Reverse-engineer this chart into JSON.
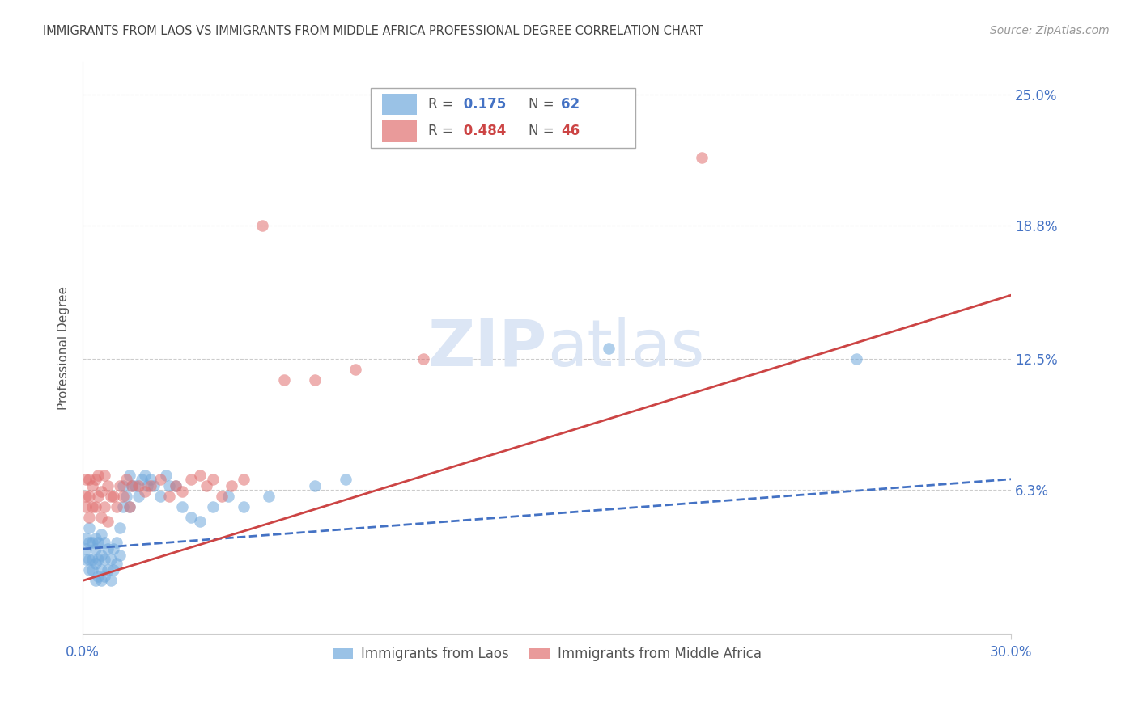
{
  "title": "IMMIGRANTS FROM LAOS VS IMMIGRANTS FROM MIDDLE AFRICA PROFESSIONAL DEGREE CORRELATION CHART",
  "source": "Source: ZipAtlas.com",
  "ylabel": "Professional Degree",
  "ytick_labels": [
    "25.0%",
    "18.8%",
    "12.5%",
    "6.3%"
  ],
  "ytick_values": [
    0.25,
    0.188,
    0.125,
    0.063
  ],
  "xlim": [
    0.0,
    0.3
  ],
  "ylim": [
    -0.005,
    0.265
  ],
  "legend_laos_R": 0.175,
  "legend_laos_N": 62,
  "legend_africa_R": 0.484,
  "legend_africa_N": 46,
  "laos_color": "#6fa8dc",
  "africa_color": "#e07070",
  "laos_line_color": "#4472c4",
  "africa_line_color": "#cc4444",
  "title_color": "#444444",
  "axis_label_color": "#4472c4",
  "watermark_color": "#dce6f5",
  "laos_x": [
    0.001,
    0.001,
    0.001,
    0.002,
    0.002,
    0.002,
    0.002,
    0.003,
    0.003,
    0.003,
    0.004,
    0.004,
    0.004,
    0.004,
    0.005,
    0.005,
    0.005,
    0.006,
    0.006,
    0.006,
    0.006,
    0.007,
    0.007,
    0.007,
    0.008,
    0.008,
    0.009,
    0.009,
    0.01,
    0.01,
    0.011,
    0.011,
    0.012,
    0.012,
    0.013,
    0.013,
    0.014,
    0.015,
    0.015,
    0.016,
    0.017,
    0.018,
    0.019,
    0.02,
    0.021,
    0.022,
    0.023,
    0.025,
    0.027,
    0.028,
    0.03,
    0.032,
    0.035,
    0.038,
    0.042,
    0.047,
    0.052,
    0.06,
    0.075,
    0.085,
    0.17,
    0.25
  ],
  "laos_y": [
    0.03,
    0.035,
    0.04,
    0.025,
    0.03,
    0.038,
    0.045,
    0.025,
    0.03,
    0.038,
    0.02,
    0.028,
    0.035,
    0.04,
    0.022,
    0.03,
    0.038,
    0.02,
    0.025,
    0.032,
    0.042,
    0.022,
    0.03,
    0.038,
    0.025,
    0.035,
    0.02,
    0.03,
    0.025,
    0.035,
    0.028,
    0.038,
    0.032,
    0.045,
    0.055,
    0.065,
    0.06,
    0.055,
    0.07,
    0.065,
    0.065,
    0.06,
    0.068,
    0.07,
    0.065,
    0.068,
    0.065,
    0.06,
    0.07,
    0.065,
    0.065,
    0.055,
    0.05,
    0.048,
    0.055,
    0.06,
    0.055,
    0.06,
    0.065,
    0.068,
    0.13,
    0.125
  ],
  "africa_x": [
    0.001,
    0.001,
    0.001,
    0.002,
    0.002,
    0.002,
    0.003,
    0.003,
    0.004,
    0.004,
    0.005,
    0.005,
    0.006,
    0.006,
    0.007,
    0.007,
    0.008,
    0.008,
    0.009,
    0.01,
    0.011,
    0.012,
    0.013,
    0.014,
    0.015,
    0.016,
    0.018,
    0.02,
    0.022,
    0.025,
    0.028,
    0.03,
    0.032,
    0.035,
    0.038,
    0.04,
    0.042,
    0.045,
    0.048,
    0.052,
    0.058,
    0.065,
    0.075,
    0.088,
    0.11,
    0.2
  ],
  "africa_y": [
    0.055,
    0.06,
    0.068,
    0.05,
    0.06,
    0.068,
    0.055,
    0.065,
    0.055,
    0.068,
    0.06,
    0.07,
    0.05,
    0.062,
    0.055,
    0.07,
    0.048,
    0.065,
    0.06,
    0.06,
    0.055,
    0.065,
    0.06,
    0.068,
    0.055,
    0.065,
    0.065,
    0.062,
    0.065,
    0.068,
    0.06,
    0.065,
    0.062,
    0.068,
    0.07,
    0.065,
    0.068,
    0.06,
    0.065,
    0.068,
    0.188,
    0.115,
    0.115,
    0.12,
    0.125,
    0.22
  ]
}
